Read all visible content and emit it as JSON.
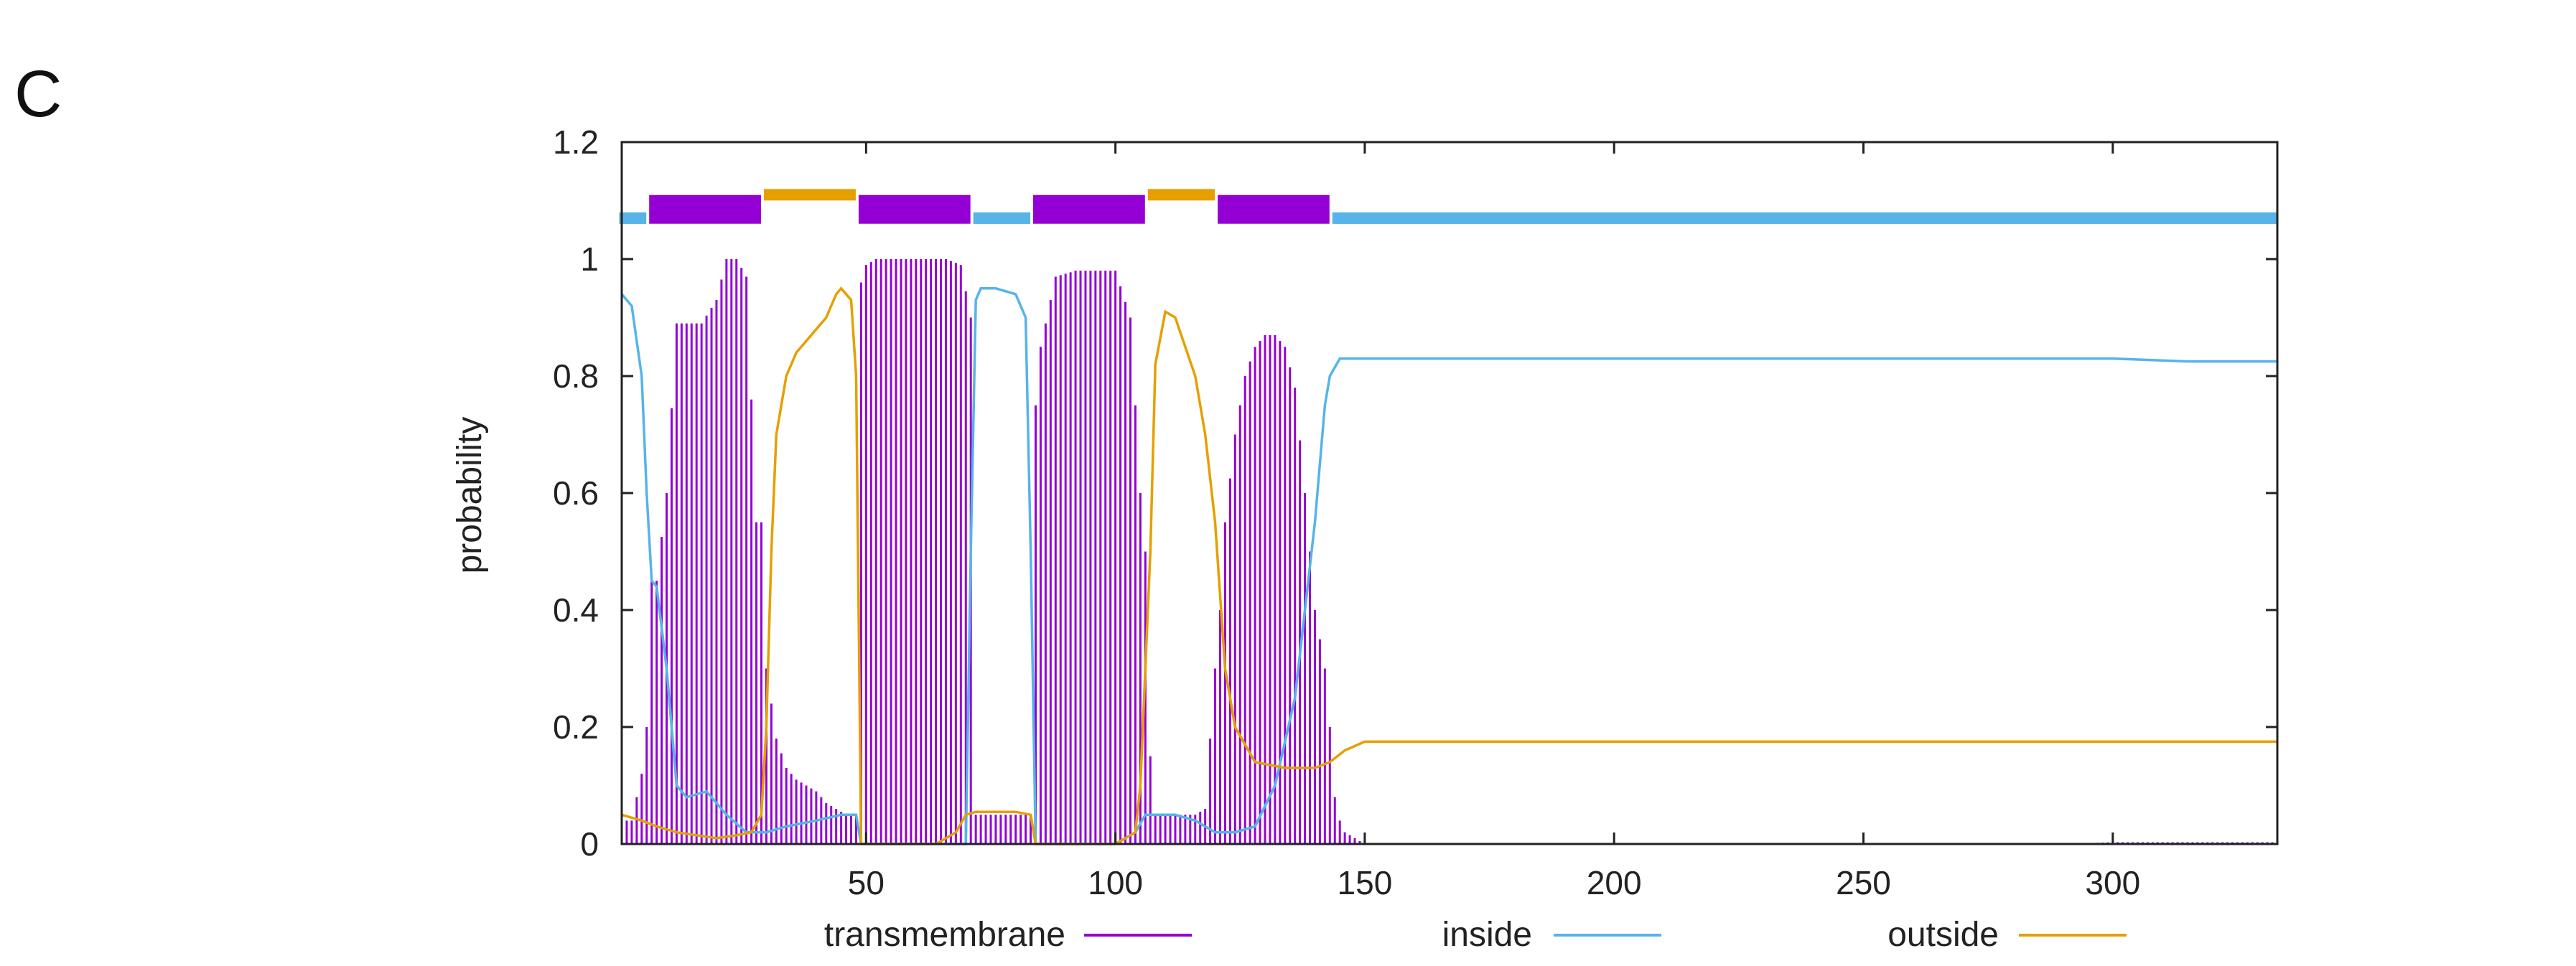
{
  "panel_label": "C",
  "chart_data": {
    "type": "bar+line",
    "ylabel": "probability",
    "xlim": [
      1,
      333
    ],
    "ylim": [
      0,
      1.2
    ],
    "x_ticks": [
      50,
      100,
      150,
      200,
      250,
      300
    ],
    "y_ticks": [
      0,
      0.2,
      0.4,
      0.6,
      0.8,
      1,
      1.2
    ],
    "x_tick_labels": [
      "50",
      "100",
      "150",
      "200",
      "250",
      "300"
    ],
    "y_tick_labels": [
      "0",
      "0.2",
      "0.4",
      "0.6",
      "0.8",
      "1",
      "1.2"
    ],
    "legend": [
      {
        "name": "transmembrane",
        "color": "#9400d3"
      },
      {
        "name": "inside",
        "color": "#56b4e9"
      },
      {
        "name": "outside",
        "color": "#e69f00"
      }
    ],
    "topology": [
      {
        "start": 1,
        "end": 6,
        "type": "inside"
      },
      {
        "start": 7,
        "end": 29,
        "type": "transmembrane"
      },
      {
        "start": 30,
        "end": 48,
        "type": "outside"
      },
      {
        "start": 49,
        "end": 71,
        "type": "transmembrane"
      },
      {
        "start": 72,
        "end": 83,
        "type": "inside"
      },
      {
        "start": 84,
        "end": 106,
        "type": "transmembrane"
      },
      {
        "start": 107,
        "end": 120,
        "type": "outside"
      },
      {
        "start": 121,
        "end": 143,
        "type": "transmembrane"
      },
      {
        "start": 144,
        "end": 333,
        "type": "inside"
      }
    ],
    "series": [
      {
        "name": "transmembrane",
        "style": "impulses",
        "x": [
          1,
          3,
          5,
          6,
          7,
          8,
          10,
          12,
          14,
          17,
          20,
          22,
          24,
          26,
          28,
          29,
          30,
          32,
          34,
          36,
          38,
          40,
          42,
          44,
          46,
          48,
          49,
          50,
          52,
          55,
          58,
          62,
          66,
          69,
          71,
          72,
          73,
          75,
          80,
          82,
          83,
          84,
          85,
          88,
          92,
          96,
          100,
          103,
          105,
          106,
          107,
          108,
          110,
          113,
          116,
          118,
          120,
          121,
          122,
          124,
          126,
          128,
          130,
          132,
          134,
          136,
          138,
          140,
          142,
          143,
          144,
          145,
          146,
          150,
          200,
          290,
          300,
          333
        ],
        "y": [
          0.04,
          0.04,
          0.12,
          0.2,
          0.45,
          0.45,
          0.6,
          0.89,
          0.89,
          0.89,
          0.93,
          1.0,
          1.0,
          0.97,
          0.55,
          0.55,
          0.3,
          0.18,
          0.13,
          0.11,
          0.1,
          0.09,
          0.07,
          0.06,
          0.05,
          0.05,
          0.96,
          0.99,
          1.0,
          1.0,
          1.0,
          1.0,
          1.0,
          0.99,
          0.9,
          0.05,
          0.05,
          0.05,
          0.05,
          0.05,
          0.05,
          0.75,
          0.85,
          0.97,
          0.98,
          0.98,
          0.98,
          0.9,
          0.6,
          0.5,
          0.15,
          0.05,
          0.05,
          0.05,
          0.05,
          0.06,
          0.3,
          0.4,
          0.55,
          0.7,
          0.8,
          0.85,
          0.87,
          0.87,
          0.85,
          0.78,
          0.6,
          0.4,
          0.3,
          0.2,
          0.08,
          0.04,
          0.02,
          0.0,
          0.0,
          0.0,
          0.003,
          0.003
        ]
      },
      {
        "name": "inside",
        "style": "line",
        "x": [
          1,
          3,
          5,
          6,
          7,
          8,
          10,
          12,
          14,
          18,
          22,
          26,
          30,
          34,
          40,
          45,
          48,
          49,
          52,
          60,
          68,
          70,
          71,
          72,
          73,
          76,
          80,
          82,
          83,
          84,
          86,
          90,
          100,
          104,
          106,
          108,
          112,
          116,
          120,
          124,
          128,
          132,
          136,
          138,
          140,
          141,
          142,
          143,
          145,
          200,
          300,
          315,
          333
        ],
        "y": [
          0.94,
          0.92,
          0.8,
          0.6,
          0.45,
          0.44,
          0.3,
          0.1,
          0.08,
          0.09,
          0.05,
          0.02,
          0.02,
          0.03,
          0.04,
          0.05,
          0.05,
          0.0,
          0.0,
          0.0,
          0.0,
          0.0,
          0.5,
          0.93,
          0.95,
          0.95,
          0.94,
          0.9,
          0.5,
          0.0,
          0.0,
          0.0,
          0.0,
          0.02,
          0.05,
          0.05,
          0.05,
          0.04,
          0.02,
          0.02,
          0.03,
          0.1,
          0.25,
          0.4,
          0.55,
          0.65,
          0.75,
          0.8,
          0.83,
          0.83,
          0.83,
          0.825,
          0.825
        ]
      },
      {
        "name": "outside",
        "style": "line",
        "x": [
          1,
          5,
          8,
          12,
          16,
          20,
          24,
          27,
          29,
          30,
          31,
          32,
          34,
          36,
          38,
          40,
          42,
          44,
          45,
          47,
          48,
          49,
          52,
          56,
          60,
          64,
          68,
          70,
          72,
          74,
          76,
          80,
          83,
          84,
          88,
          96,
          100,
          104,
          105,
          106,
          107,
          108,
          110,
          112,
          114,
          116,
          118,
          120,
          122,
          124,
          128,
          134,
          140,
          143,
          146,
          150,
          200,
          333
        ],
        "y": [
          0.05,
          0.04,
          0.03,
          0.02,
          0.015,
          0.01,
          0.015,
          0.02,
          0.05,
          0.2,
          0.5,
          0.7,
          0.8,
          0.84,
          0.86,
          0.88,
          0.9,
          0.94,
          0.95,
          0.93,
          0.8,
          0.0,
          0.0,
          0.0,
          0.0,
          0.0,
          0.02,
          0.05,
          0.055,
          0.055,
          0.055,
          0.055,
          0.05,
          0.0,
          0.0,
          0.0,
          0.0,
          0.02,
          0.1,
          0.3,
          0.5,
          0.82,
          0.91,
          0.9,
          0.85,
          0.8,
          0.7,
          0.55,
          0.3,
          0.2,
          0.14,
          0.13,
          0.13,
          0.14,
          0.16,
          0.175,
          0.175,
          0.175
        ]
      }
    ]
  }
}
